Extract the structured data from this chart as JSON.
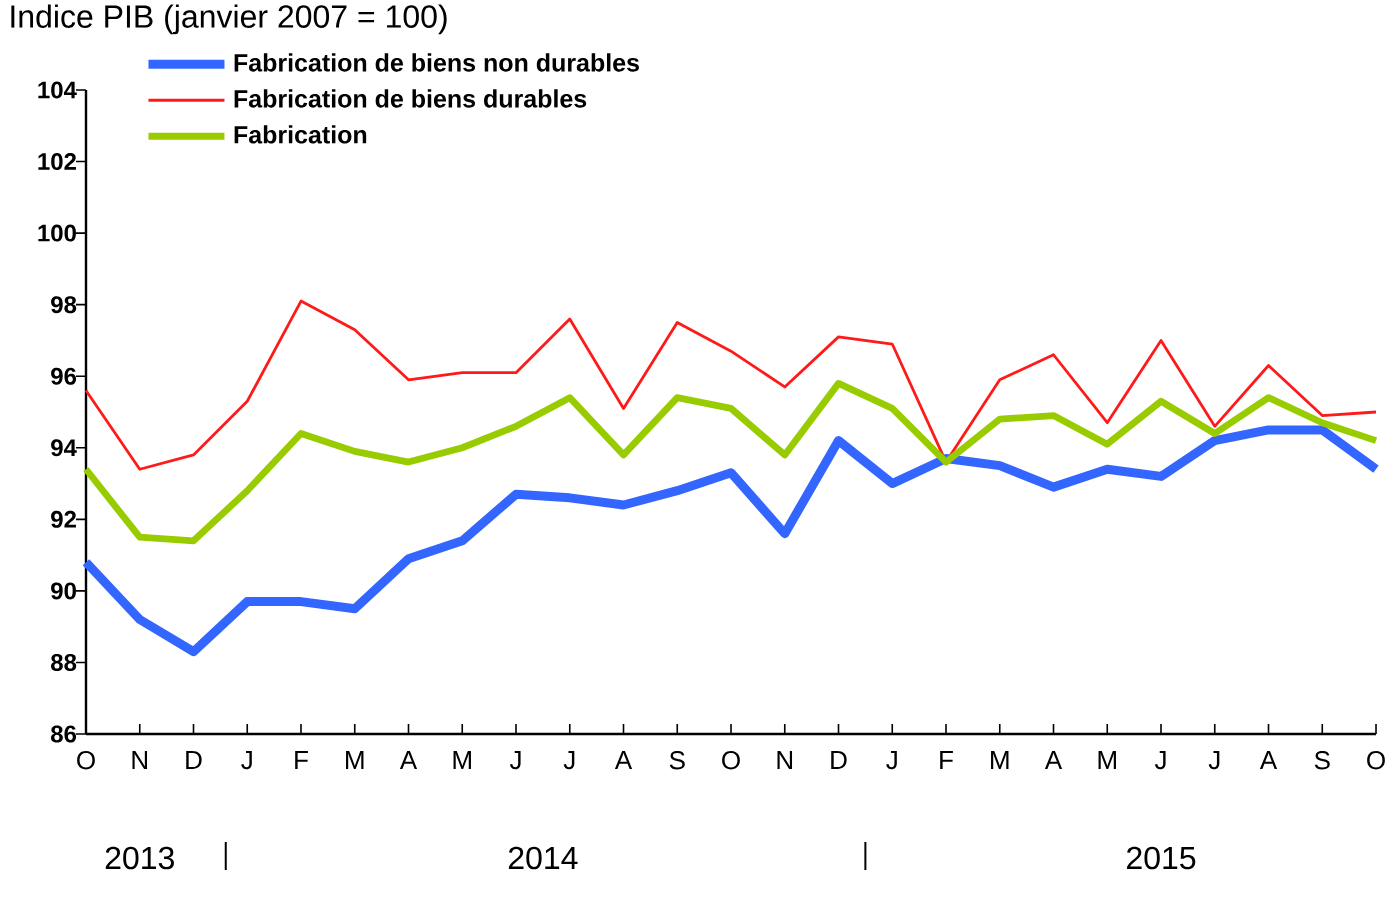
{
  "chart_data": {
    "type": "line",
    "ylabel": "Indice PIB (janvier 2007 = 100)",
    "categories": [
      "O",
      "N",
      "D",
      "J",
      "F",
      "M",
      "A",
      "M",
      "J",
      "J",
      "A",
      "S",
      "O",
      "N",
      "D",
      "J",
      "F",
      "M",
      "A",
      "M",
      "J",
      "J",
      "A",
      "S",
      "O"
    ],
    "series": [
      {
        "name": "Fabrication de biens non durables",
        "color": "#3366ff",
        "values": [
          90.8,
          89.2,
          88.3,
          89.7,
          89.7,
          89.5,
          90.9,
          91.4,
          92.7,
          92.6,
          92.4,
          92.8,
          93.3,
          91.6,
          94.2,
          93.0,
          93.7,
          93.5,
          92.9,
          93.4,
          93.2,
          94.2,
          94.5,
          94.5,
          93.4
        ]
      },
      {
        "name": "Fabrication de biens durables",
        "color": "#ff1a1a",
        "values": [
          95.6,
          93.4,
          93.8,
          95.3,
          98.1,
          97.3,
          95.9,
          96.1,
          96.1,
          97.6,
          95.1,
          97.5,
          96.7,
          95.7,
          97.1,
          96.9,
          93.6,
          95.9,
          96.6,
          94.7,
          97.0,
          94.6,
          96.3,
          94.9,
          95.0
        ]
      },
      {
        "name": "Fabrication",
        "color": "#99cc00",
        "values": [
          93.4,
          91.5,
          91.4,
          92.8,
          94.4,
          93.9,
          93.6,
          94.0,
          94.6,
          95.4,
          93.8,
          95.4,
          95.1,
          93.8,
          95.8,
          95.1,
          93.6,
          94.8,
          94.9,
          94.1,
          95.3,
          94.4,
          95.4,
          94.7,
          94.2
        ]
      }
    ],
    "ylim": [
      86,
      104
    ],
    "yticks": [
      86,
      88,
      90,
      92,
      94,
      96,
      98,
      100,
      102,
      104
    ],
    "legend": "top left",
    "marker": "none",
    "line_style": "solid",
    "annotations": [
      "2013",
      "2014",
      "2015"
    ]
  }
}
